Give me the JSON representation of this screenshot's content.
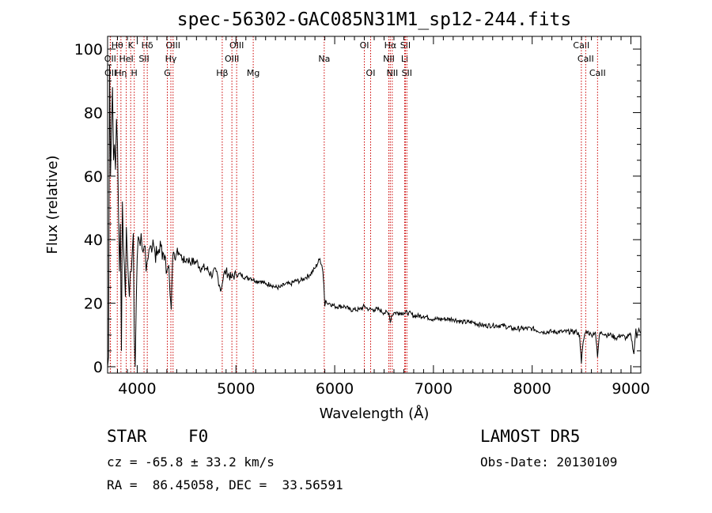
{
  "chart_data": {
    "type": "line",
    "title": "spec-56302-GAC085N31M1_sp12-244.fits",
    "xlabel": "Wavelength (Å)",
    "ylabel": "Flux (relative)",
    "xlim": [
      3700,
      9100
    ],
    "ylim": [
      -2,
      104
    ],
    "xticks": [
      4000,
      5000,
      6000,
      7000,
      8000,
      9000
    ],
    "yticks": [
      0,
      20,
      40,
      60,
      80,
      100
    ],
    "grid": false,
    "series": [
      {
        "x": [
          3700,
          3710,
          3720,
          3730,
          3740,
          3750,
          3760,
          3770,
          3780,
          3790,
          3800,
          3810,
          3820,
          3830,
          3840,
          3850,
          3860,
          3870,
          3880,
          3890,
          3900,
          3910,
          3920,
          3930,
          3940,
          3950,
          3960,
          3970,
          3980,
          3990,
          4000,
          4010,
          4020,
          4030,
          4040,
          4050,
          4060,
          4070,
          4080,
          4090,
          4100,
          4110,
          4120,
          4140,
          4160,
          4180,
          4200,
          4220,
          4240,
          4260,
          4280,
          4300,
          4320,
          4340,
          4345,
          4350,
          4360,
          4380,
          4400,
          4420,
          4440,
          4460,
          4480,
          4500,
          4550,
          4600,
          4650,
          4700,
          4750,
          4800,
          4850,
          4861,
          4875,
          4900,
          4950,
          5000,
          5050,
          5100,
          5150,
          5200,
          5250,
          5300,
          5350,
          5400,
          5450,
          5500,
          5550,
          5600,
          5650,
          5700,
          5750,
          5800,
          5850,
          5870,
          5880,
          5890,
          5900,
          5910,
          5920,
          5950,
          6000,
          6050,
          6100,
          6150,
          6200,
          6250,
          6300,
          6350,
          6400,
          6450,
          6500,
          6550,
          6563,
          6575,
          6600,
          6650,
          6700,
          6750,
          6800,
          6900,
          7000,
          7100,
          7200,
          7300,
          7400,
          7500,
          7600,
          7700,
          7800,
          7900,
          8000,
          8100,
          8200,
          8300,
          8400,
          8450,
          8480,
          8498,
          8510,
          8530,
          8542,
          8560,
          8600,
          8640,
          8662,
          8680,
          8700,
          8750,
          8800,
          8850,
          8900,
          8950,
          9000,
          9030,
          9050,
          9060,
          9080,
          9100
        ],
        "values": [
          0,
          3,
          95,
          60,
          75,
          88,
          65,
          70,
          62,
          78,
          70,
          50,
          30,
          45,
          5,
          52,
          38,
          32,
          22,
          44,
          35,
          28,
          22,
          30,
          30,
          36,
          42,
          10,
          0,
          20,
          34,
          41,
          40,
          38,
          42,
          37,
          36,
          38,
          38,
          30,
          33,
          34,
          37,
          38,
          40,
          36,
          35,
          37,
          38,
          36,
          35,
          30,
          32,
          20,
          18,
          25,
          35,
          34,
          36,
          36,
          35,
          34,
          33,
          34,
          33,
          33,
          31,
          31,
          29,
          30,
          24,
          26,
          29,
          30,
          28,
          29,
          29,
          28,
          28,
          27,
          27,
          26,
          26,
          25,
          25,
          26,
          26,
          27,
          27,
          28,
          29,
          31,
          34,
          32,
          30,
          26,
          19,
          21,
          20,
          20,
          19,
          19,
          19,
          18,
          18,
          18,
          19,
          18,
          18,
          18,
          17,
          17,
          14,
          16,
          17,
          17,
          17,
          17,
          16,
          16,
          15,
          15,
          15,
          14,
          14,
          13,
          13,
          13,
          12,
          12,
          12,
          11,
          11,
          11,
          11,
          11,
          10,
          1,
          6,
          10,
          11,
          11,
          10,
          11,
          3,
          10,
          11,
          10,
          10,
          9,
          10,
          9,
          10,
          4,
          12,
          9,
          12,
          11
        ]
      }
    ],
    "line_markers": [
      {
        "label": "Hθ",
        "x": 3798,
        "row": 1
      },
      {
        "label": "OII",
        "x": 3727,
        "row": 2
      },
      {
        "label": "OII",
        "x": 3729,
        "row": 3
      },
      {
        "label": "Hη",
        "x": 3835,
        "row": 3
      },
      {
        "label": "K",
        "x": 3934,
        "row": 1
      },
      {
        "label": "HeI",
        "x": 3889,
        "row": 2
      },
      {
        "label": "H",
        "x": 3970,
        "row": 3
      },
      {
        "label": "Hδ",
        "x": 4102,
        "row": 1
      },
      {
        "label": "SII",
        "x": 4069,
        "row": 2
      },
      {
        "label": "OIII",
        "x": 4363,
        "row": 1
      },
      {
        "label": "Hγ",
        "x": 4341,
        "row": 2
      },
      {
        "label": "G",
        "x": 4305,
        "row": 3
      },
      {
        "label": "OIII",
        "x": 5007,
        "row": 1
      },
      {
        "label": "OIII",
        "x": 4959,
        "row": 2
      },
      {
        "label": "Hβ",
        "x": 4861,
        "row": 3
      },
      {
        "label": "Mg",
        "x": 5175,
        "row": 3
      },
      {
        "label": "Na",
        "x": 5894,
        "row": 2
      },
      {
        "label": "OI",
        "x": 6300,
        "row": 1
      },
      {
        "label": "OI",
        "x": 6364,
        "row": 3
      },
      {
        "label": "Hα",
        "x": 6563,
        "row": 1
      },
      {
        "label": "SII",
        "x": 6716,
        "row": 1
      },
      {
        "label": "NII",
        "x": 6548,
        "row": 2
      },
      {
        "label": "Li",
        "x": 6708,
        "row": 2
      },
      {
        "label": "NII",
        "x": 6583,
        "row": 3
      },
      {
        "label": "SII",
        "x": 6731,
        "row": 3
      },
      {
        "label": "CaII",
        "x": 8498,
        "row": 1
      },
      {
        "label": "CaII",
        "x": 8542,
        "row": 2
      },
      {
        "label": "CaII",
        "x": 8662,
        "row": 3
      }
    ]
  },
  "info": {
    "object_class": "STAR",
    "subclass": "F0",
    "survey": "LAMOST DR5",
    "cz": "cz = -65.8 ± 33.2 km/s",
    "obs_date": "Obs-Date: 20130109",
    "coords": "RA =  86.45058, DEC =  33.56591"
  },
  "colors": {
    "line": "#000000",
    "marker": "#cc0000",
    "axis": "#000000"
  }
}
